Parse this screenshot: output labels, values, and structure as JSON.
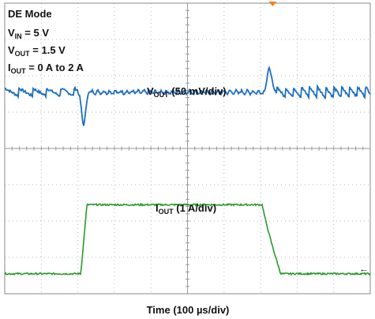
{
  "chart_data": {
    "type": "line",
    "annotations": [
      {
        "main": "DE Mode",
        "sub": "",
        "rest": ""
      },
      {
        "main": "V",
        "sub": "IN",
        "rest": " = 5 V"
      },
      {
        "main": "V",
        "sub": "OUT",
        "rest": " = 1.5 V"
      },
      {
        "main": "I",
        "sub": "OUT",
        "rest": " = 0 A to 2 A"
      }
    ],
    "xlabel": "Time (100 µs/div)",
    "x_divisions": 10,
    "y_divisions": 8,
    "series": [
      {
        "name_main": "V",
        "name_sub": "OUT",
        "name_rest": " (50 mV/div)",
        "color": "#1f6fbf",
        "baseline_div": 5.55,
        "undershoot_div": -0.9,
        "overshoot_div": 0.65
      },
      {
        "name_main": "I",
        "name_sub": "OUT",
        "name_rest": " (1 A/div)",
        "color": "#2a9a2a",
        "low_div": 0.55,
        "high_div": 2.45,
        "rise_start_div": 2.08,
        "rise_end_div": 2.25,
        "fall_start_div": 7.05,
        "fall_end_div": 7.55
      }
    ],
    "trigger_marker": "←",
    "colors": {
      "trigger": "#f08020",
      "grid": "#b8b8b8",
      "frame": "#888888"
    }
  }
}
